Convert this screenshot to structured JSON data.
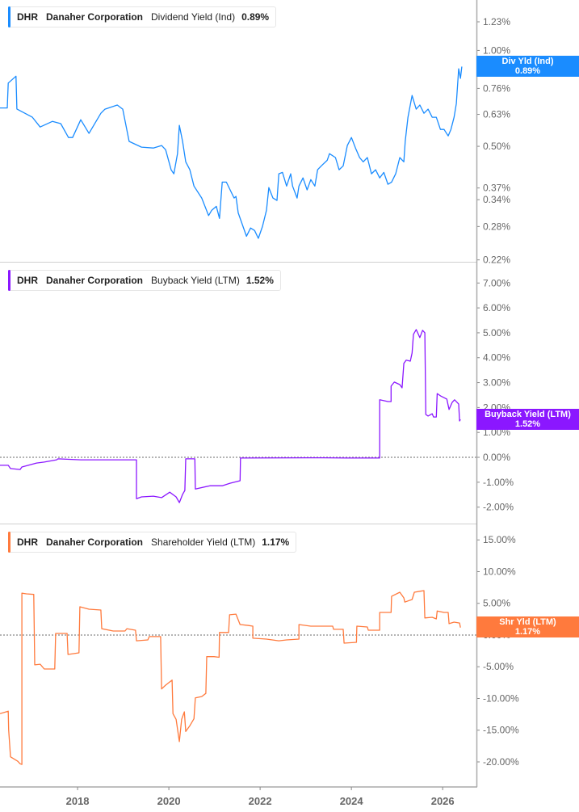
{
  "chart_data": [
    {
      "type": "line",
      "legend": {
        "ticker": "DHR",
        "company": "Danaher Corporation",
        "metric": "Dividend Yield (Ind)",
        "value": "0.89%"
      },
      "end_label": {
        "name": "Div Yld (Ind)",
        "value": "0.89%"
      },
      "color": "#1a8cff",
      "yscale": "log",
      "ylim": [
        0.217,
        1.44
      ],
      "yticks": [
        1.23,
        1.0,
        0.76,
        0.63,
        0.5,
        0.37,
        0.34,
        0.28,
        0.22
      ],
      "ytick_labels": [
        "1.23%",
        "1.00%",
        "0.76%",
        "0.63%",
        "0.50%",
        "0.37%",
        "0.34%",
        "0.28%",
        "0.22%"
      ],
      "zero_line": false,
      "points": [
        [
          2016.3,
          0.66
        ],
        [
          2016.46,
          0.66
        ],
        [
          2016.48,
          0.79
        ],
        [
          2016.65,
          0.83
        ],
        [
          2016.67,
          0.655
        ],
        [
          2017.01,
          0.617
        ],
        [
          2017.18,
          0.575
        ],
        [
          2017.45,
          0.599
        ],
        [
          2017.63,
          0.589
        ],
        [
          2017.8,
          0.533
        ],
        [
          2017.89,
          0.533
        ],
        [
          2018.07,
          0.606
        ],
        [
          2018.25,
          0.549
        ],
        [
          2018.51,
          0.635
        ],
        [
          2018.6,
          0.654
        ],
        [
          2018.87,
          0.674
        ],
        [
          2018.99,
          0.654
        ],
        [
          2019.13,
          0.518
        ],
        [
          2019.4,
          0.497
        ],
        [
          2019.66,
          0.494
        ],
        [
          2019.84,
          0.503
        ],
        [
          2019.93,
          0.488
        ],
        [
          2020.05,
          0.422
        ],
        [
          2020.11,
          0.41
        ],
        [
          2020.19,
          0.474
        ],
        [
          2020.23,
          0.582
        ],
        [
          2020.3,
          0.518
        ],
        [
          2020.37,
          0.447
        ],
        [
          2020.46,
          0.422
        ],
        [
          2020.55,
          0.375
        ],
        [
          2020.72,
          0.344
        ],
        [
          2020.87,
          0.303
        ],
        [
          2020.94,
          0.315
        ],
        [
          2021.04,
          0.324
        ],
        [
          2021.11,
          0.297
        ],
        [
          2021.17,
          0.386
        ],
        [
          2021.26,
          0.386
        ],
        [
          2021.43,
          0.344
        ],
        [
          2021.47,
          0.348
        ],
        [
          2021.52,
          0.309
        ],
        [
          2021.7,
          0.261
        ],
        [
          2021.79,
          0.277
        ],
        [
          2021.88,
          0.272
        ],
        [
          2021.96,
          0.257
        ],
        [
          2022.05,
          0.28
        ],
        [
          2022.14,
          0.315
        ],
        [
          2022.19,
          0.371
        ],
        [
          2022.28,
          0.344
        ],
        [
          2022.37,
          0.338
        ],
        [
          2022.41,
          0.41
        ],
        [
          2022.49,
          0.414
        ],
        [
          2022.58,
          0.375
        ],
        [
          2022.67,
          0.41
        ],
        [
          2022.71,
          0.375
        ],
        [
          2022.81,
          0.344
        ],
        [
          2022.85,
          0.375
        ],
        [
          2022.94,
          0.398
        ],
        [
          2023.03,
          0.365
        ],
        [
          2023.11,
          0.393
        ],
        [
          2023.2,
          0.375
        ],
        [
          2023.26,
          0.422
        ],
        [
          2023.34,
          0.434
        ],
        [
          2023.47,
          0.452
        ],
        [
          2023.52,
          0.474
        ],
        [
          2023.65,
          0.461
        ],
        [
          2023.73,
          0.422
        ],
        [
          2023.82,
          0.434
        ],
        [
          2023.91,
          0.503
        ],
        [
          2024.0,
          0.533
        ],
        [
          2024.09,
          0.494
        ],
        [
          2024.18,
          0.461
        ],
        [
          2024.26,
          0.447
        ],
        [
          2024.35,
          0.461
        ],
        [
          2024.44,
          0.41
        ],
        [
          2024.53,
          0.422
        ],
        [
          2024.62,
          0.398
        ],
        [
          2024.71,
          0.414
        ],
        [
          2024.8,
          0.38
        ],
        [
          2024.88,
          0.386
        ],
        [
          2024.97,
          0.41
        ],
        [
          2025.06,
          0.461
        ],
        [
          2025.15,
          0.447
        ],
        [
          2025.18,
          0.518
        ],
        [
          2025.24,
          0.617
        ],
        [
          2025.33,
          0.722
        ],
        [
          2025.42,
          0.654
        ],
        [
          2025.5,
          0.674
        ],
        [
          2025.59,
          0.635
        ],
        [
          2025.68,
          0.654
        ],
        [
          2025.77,
          0.617
        ],
        [
          2025.86,
          0.617
        ],
        [
          2025.95,
          0.565
        ],
        [
          2026.03,
          0.565
        ],
        [
          2026.12,
          0.539
        ],
        [
          2026.18,
          0.565
        ],
        [
          2026.25,
          0.617
        ],
        [
          2026.3,
          0.681
        ],
        [
          2026.35,
          0.876
        ],
        [
          2026.39,
          0.817
        ],
        [
          2026.42,
          0.89
        ]
      ]
    },
    {
      "type": "line",
      "legend": {
        "ticker": "DHR",
        "company": "Danaher Corporation",
        "metric": "Buyback Yield (LTM)",
        "value": "1.52%"
      },
      "end_label": {
        "name": "Buyback Yield (LTM)",
        "value": "1.52%"
      },
      "color": "#8b17ff",
      "yscale": "linear",
      "ylim": [
        -2.66,
        7.82
      ],
      "yticks": [
        7,
        6,
        5,
        4,
        3,
        2,
        1,
        0,
        -1,
        -2
      ],
      "ytick_labels": [
        "7.00%",
        "6.00%",
        "5.00%",
        "4.00%",
        "3.00%",
        "2.00%",
        "1.00%",
        "0.00%",
        "-1.00%",
        "-2.00%"
      ],
      "zero_line": true,
      "points": [
        [
          2016.3,
          -0.32
        ],
        [
          2016.48,
          -0.32
        ],
        [
          2016.53,
          -0.45
        ],
        [
          2016.74,
          -0.49
        ],
        [
          2016.78,
          -0.39
        ],
        [
          2017.1,
          -0.23
        ],
        [
          2017.27,
          -0.19
        ],
        [
          2017.54,
          -0.1
        ],
        [
          2017.57,
          -0.06
        ],
        [
          2018.07,
          -0.1
        ],
        [
          2018.78,
          -0.1
        ],
        [
          2019.29,
          -0.1
        ],
        [
          2019.29,
          -1.66
        ],
        [
          2019.4,
          -1.59
        ],
        [
          2019.66,
          -1.56
        ],
        [
          2019.84,
          -1.62
        ],
        [
          2020.02,
          -1.4
        ],
        [
          2020.16,
          -1.59
        ],
        [
          2020.23,
          -1.82
        ],
        [
          2020.3,
          -1.49
        ],
        [
          2020.35,
          -1.33
        ],
        [
          2020.37,
          -0.06
        ],
        [
          2020.57,
          -0.06
        ],
        [
          2020.58,
          -1.27
        ],
        [
          2020.9,
          -1.14
        ],
        [
          2021.17,
          -1.14
        ],
        [
          2021.34,
          -1.04
        ],
        [
          2021.56,
          -0.94
        ],
        [
          2021.57,
          -0.03
        ],
        [
          2021.61,
          -0.03
        ],
        [
          2023.38,
          -0.02
        ],
        [
          2023.91,
          -0.03
        ],
        [
          2024.62,
          -0.03
        ],
        [
          2024.62,
          2.31
        ],
        [
          2024.8,
          2.24
        ],
        [
          2024.87,
          2.24
        ],
        [
          2024.87,
          2.86
        ],
        [
          2024.94,
          3.02
        ],
        [
          2025.06,
          2.92
        ],
        [
          2025.11,
          2.79
        ],
        [
          2025.15,
          3.77
        ],
        [
          2025.2,
          3.9
        ],
        [
          2025.29,
          3.86
        ],
        [
          2025.33,
          4.19
        ],
        [
          2025.36,
          4.94
        ],
        [
          2025.42,
          5.13
        ],
        [
          2025.5,
          4.81
        ],
        [
          2025.56,
          5.1
        ],
        [
          2025.61,
          5.0
        ],
        [
          2025.63,
          1.72
        ],
        [
          2025.68,
          1.66
        ],
        [
          2025.77,
          1.75
        ],
        [
          2025.8,
          1.62
        ],
        [
          2025.86,
          1.62
        ],
        [
          2025.88,
          2.56
        ],
        [
          2025.95,
          2.47
        ],
        [
          2026.09,
          2.34
        ],
        [
          2026.14,
          1.92
        ],
        [
          2026.21,
          2.21
        ],
        [
          2026.26,
          2.31
        ],
        [
          2026.35,
          2.14
        ],
        [
          2026.37,
          1.46
        ],
        [
          2026.39,
          1.52
        ]
      ]
    },
    {
      "type": "line",
      "legend": {
        "ticker": "DHR",
        "company": "Danaher Corporation",
        "metric": "Shareholder Yield (LTM)",
        "value": "1.17%"
      },
      "end_label": {
        "name": "Shr Yld (LTM)",
        "value": "1.17%"
      },
      "color": "#ff7a3d",
      "yscale": "linear",
      "ylim": [
        -23.95,
        17.45
      ],
      "yticks": [
        15,
        10,
        5,
        0,
        -5,
        -10,
        -15,
        -20
      ],
      "ytick_labels": [
        "15.00%",
        "10.00%",
        "5.00%",
        "0.00%",
        "-5.00%",
        "-10.00%",
        "-15.00%",
        "-20.00%"
      ],
      "zero_line": true,
      "points": [
        [
          2016.3,
          -12.4
        ],
        [
          2016.48,
          -12.0
        ],
        [
          2016.49,
          -14.9
        ],
        [
          2016.53,
          -19.2
        ],
        [
          2016.69,
          -19.9
        ],
        [
          2016.74,
          -20.3
        ],
        [
          2016.78,
          -20.4
        ],
        [
          2016.78,
          6.6
        ],
        [
          2016.88,
          6.5
        ],
        [
          2017.04,
          6.4
        ],
        [
          2017.06,
          -4.7
        ],
        [
          2017.18,
          -4.6
        ],
        [
          2017.27,
          -5.35
        ],
        [
          2017.5,
          -5.35
        ],
        [
          2017.52,
          0.25
        ],
        [
          2017.77,
          0.25
        ],
        [
          2017.79,
          -3.06
        ],
        [
          2018.03,
          -2.8
        ],
        [
          2018.05,
          4.46
        ],
        [
          2018.25,
          4.08
        ],
        [
          2018.51,
          3.95
        ],
        [
          2018.53,
          1.0
        ],
        [
          2018.78,
          0.64
        ],
        [
          2019.04,
          0.64
        ],
        [
          2019.08,
          1.0
        ],
        [
          2019.27,
          0.76
        ],
        [
          2019.29,
          -0.9
        ],
        [
          2019.54,
          -0.76
        ],
        [
          2019.57,
          -0.25
        ],
        [
          2019.82,
          -0.25
        ],
        [
          2019.84,
          -8.5
        ],
        [
          2019.93,
          -7.9
        ],
        [
          2020.07,
          -7.1
        ],
        [
          2020.09,
          -12.4
        ],
        [
          2020.16,
          -13.3
        ],
        [
          2020.23,
          -16.8
        ],
        [
          2020.28,
          -13.3
        ],
        [
          2020.34,
          -12.1
        ],
        [
          2020.37,
          -15.2
        ],
        [
          2020.46,
          -14.3
        ],
        [
          2020.55,
          -13.2
        ],
        [
          2020.58,
          -9.9
        ],
        [
          2020.72,
          -9.7
        ],
        [
          2020.81,
          -9.2
        ],
        [
          2020.83,
          -3.4
        ],
        [
          2020.99,
          -3.4
        ],
        [
          2021.1,
          -3.5
        ],
        [
          2021.11,
          0.4
        ],
        [
          2021.31,
          0.4
        ],
        [
          2021.33,
          3.2
        ],
        [
          2021.47,
          3.3
        ],
        [
          2021.56,
          1.66
        ],
        [
          2021.57,
          1.66
        ],
        [
          2021.75,
          1.5
        ],
        [
          2021.84,
          1.4
        ],
        [
          2021.84,
          -0.5
        ],
        [
          2022.14,
          -0.64
        ],
        [
          2022.41,
          -0.9
        ],
        [
          2022.58,
          -0.76
        ],
        [
          2022.85,
          -0.64
        ],
        [
          2022.85,
          1.66
        ],
        [
          2023.11,
          1.4
        ],
        [
          2023.38,
          1.4
        ],
        [
          2023.59,
          1.4
        ],
        [
          2023.61,
          0.9
        ],
        [
          2023.82,
          0.9
        ],
        [
          2023.84,
          -1.27
        ],
        [
          2024.11,
          -1.15
        ],
        [
          2024.12,
          1.4
        ],
        [
          2024.35,
          1.27
        ],
        [
          2024.37,
          0.76
        ],
        [
          2024.62,
          0.76
        ],
        [
          2024.62,
          3.57
        ],
        [
          2024.87,
          3.57
        ],
        [
          2024.88,
          6.1
        ],
        [
          2025.06,
          6.75
        ],
        [
          2025.15,
          5.86
        ],
        [
          2025.17,
          5.2
        ],
        [
          2025.33,
          5.6
        ],
        [
          2025.38,
          6.75
        ],
        [
          2025.5,
          6.9
        ],
        [
          2025.59,
          7.0
        ],
        [
          2025.61,
          2.7
        ],
        [
          2025.77,
          2.8
        ],
        [
          2025.86,
          2.55
        ],
        [
          2025.88,
          3.8
        ],
        [
          2026.03,
          3.57
        ],
        [
          2026.12,
          3.57
        ],
        [
          2026.14,
          1.8
        ],
        [
          2026.25,
          2.04
        ],
        [
          2026.37,
          1.9
        ],
        [
          2026.39,
          1.17
        ]
      ]
    }
  ],
  "x_axis": {
    "xlim": [
      2016.3,
      2026.74
    ],
    "ticks": [
      2018,
      2020,
      2022,
      2024,
      2026
    ],
    "tick_labels": [
      "2018",
      "2020",
      "2022",
      "2024",
      "2026"
    ]
  }
}
